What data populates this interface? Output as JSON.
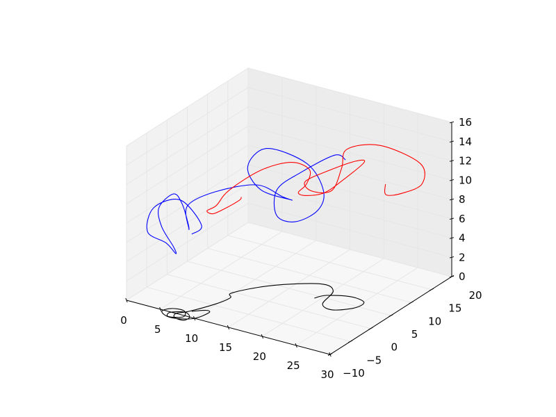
{
  "chart_data": {
    "type": "line",
    "projection": "3d",
    "title": "",
    "xlabel": "",
    "ylabel": "",
    "zlabel": "",
    "grid": true,
    "legend": "none",
    "xlim": [
      0,
      30
    ],
    "ylim": [
      -10,
      20
    ],
    "zlim": [
      0,
      16
    ],
    "x_ticks": [
      {
        "value": 0,
        "label": "0"
      },
      {
        "value": 5,
        "label": "5"
      },
      {
        "value": 10,
        "label": "10"
      },
      {
        "value": 15,
        "label": "15"
      },
      {
        "value": 20,
        "label": "20"
      },
      {
        "value": 25,
        "label": "25"
      },
      {
        "value": 30,
        "label": "30"
      }
    ],
    "y_ticks": [
      {
        "value": -10,
        "label": "−10"
      },
      {
        "value": -5,
        "label": "−5"
      },
      {
        "value": 0,
        "label": "0"
      },
      {
        "value": 5,
        "label": "5"
      },
      {
        "value": 10,
        "label": "10"
      },
      {
        "value": 15,
        "label": "15"
      },
      {
        "value": 20,
        "label": "20"
      }
    ],
    "z_ticks": [
      {
        "value": 0,
        "label": "0"
      },
      {
        "value": 2,
        "label": "2"
      },
      {
        "value": 4,
        "label": "4"
      },
      {
        "value": 6,
        "label": "6"
      },
      {
        "value": 8,
        "label": "8"
      },
      {
        "value": 10,
        "label": "10"
      },
      {
        "value": 12,
        "label": "12"
      },
      {
        "value": 14,
        "label": "14"
      },
      {
        "value": 16,
        "label": "16"
      }
    ],
    "series": [
      {
        "color": "#000000",
        "points": [
          [
            8.6,
            -8.3,
            0
          ],
          [
            9.9,
            -7.0,
            0
          ],
          [
            10.6,
            -7.4,
            0
          ],
          [
            9.9,
            -10.2,
            0
          ],
          [
            7.4,
            -11.5,
            0
          ],
          [
            5.5,
            -10.5,
            0
          ],
          [
            6.0,
            -9.0,
            0
          ],
          [
            7.7,
            -8.7,
            0
          ],
          [
            8.6,
            -10.4,
            0
          ],
          [
            7.0,
            -11.4,
            0
          ],
          [
            6.5,
            -10.2,
            0
          ],
          [
            8.0,
            -9.0,
            0
          ],
          [
            9.3,
            -10.0,
            0
          ],
          [
            9.2,
            -11.3,
            0
          ],
          [
            7.8,
            -11.2,
            0
          ],
          [
            7.3,
            -10.0,
            0
          ],
          [
            8.3,
            -8.5,
            0
          ],
          [
            9.9,
            -4.5,
            0
          ],
          [
            10.4,
            -1.8,
            0
          ],
          [
            9.8,
            -0.3,
            0
          ],
          [
            12.7,
            4.5,
            0
          ],
          [
            17.5,
            8.5,
            0
          ],
          [
            20.0,
            7.5,
            0
          ],
          [
            21.0,
            3.2,
            0
          ],
          [
            23.0,
            2.3,
            0
          ],
          [
            25.0,
            4.5,
            0
          ],
          [
            25.0,
            6.7,
            0
          ],
          [
            22.7,
            7.2,
            0
          ],
          [
            20.0,
            5.8,
            0
          ],
          [
            19.2,
            4.2,
            0
          ]
        ]
      },
      {
        "color": "#0000ff",
        "points": [
          [
            8.6,
            -8.3,
            8
          ],
          [
            8.3,
            -5.4,
            8.1
          ],
          [
            5.3,
            -5.6,
            10.2
          ],
          [
            3.0,
            -8.3,
            9.7
          ],
          [
            2.8,
            -9.5,
            7.5
          ],
          [
            5.0,
            -8.6,
            6.5
          ],
          [
            6.0,
            -7.9,
            5.4
          ],
          [
            6.1,
            -8.6,
            6.3
          ],
          [
            4.7,
            -9.2,
            8.3
          ],
          [
            4.3,
            -9.2,
            10.2
          ],
          [
            5.8,
            -8.1,
            11.6
          ],
          [
            6.5,
            -7.2,
            10.5
          ],
          [
            6.3,
            -5.3,
            7.8
          ],
          [
            5.3,
            -3.5,
            6.7
          ],
          [
            4.8,
            -3.0,
            8.8
          ],
          [
            7.6,
            -0.8,
            10.2
          ],
          [
            11.4,
            3.0,
            10.6
          ],
          [
            13.9,
            5.1,
            9.3
          ],
          [
            14.0,
            7.2,
            8.4
          ],
          [
            10.1,
            6.2,
            9.0
          ],
          [
            8.0,
            6.5,
            10.9
          ],
          [
            9.2,
            9.2,
            12.3
          ],
          [
            13.3,
            12.2,
            10.7
          ],
          [
            15.7,
            12.3,
            8.3
          ],
          [
            15.8,
            10.7,
            6.7
          ],
          [
            14.5,
            7.3,
            6.2
          ],
          [
            12.8,
            5.6,
            7.0
          ],
          [
            12.6,
            6.0,
            9.5
          ],
          [
            14.6,
            8.5,
            11.0
          ],
          [
            17.5,
            12.0,
            12.4
          ],
          [
            18.0,
            13.9,
            11.5
          ]
        ]
      },
      {
        "color": "#ff0000",
        "points": [
          [
            16.8,
            -9.8,
            13.8
          ],
          [
            16.5,
            -9.8,
            13.4
          ],
          [
            13.2,
            -7.9,
            11.4
          ],
          [
            10.0,
            -5.4,
            9.6
          ],
          [
            8.1,
            -3.7,
            9.1
          ],
          [
            9.0,
            -2.9,
            9.6
          ],
          [
            10.2,
            -1.8,
            11.1
          ],
          [
            13.4,
            0.9,
            13.1
          ],
          [
            16.1,
            3.8,
            13.6
          ],
          [
            17.3,
            6.2,
            12.4
          ],
          [
            16.3,
            7.1,
            10.5
          ],
          [
            14.8,
            7.6,
            9.2
          ],
          [
            15.0,
            9.2,
            8.5
          ],
          [
            16.6,
            11.0,
            8.6
          ],
          [
            18.5,
            12.5,
            9.9
          ],
          [
            20.8,
            13.8,
            11.8
          ],
          [
            20.8,
            11.6,
            12.5
          ],
          [
            18.4,
            8.7,
            11.8
          ],
          [
            16.4,
            6.6,
            10.9
          ],
          [
            17.2,
            6.9,
            10.0
          ],
          [
            18.9,
            9.0,
            9.8
          ],
          [
            19.4,
            10.6,
            11.8
          ],
          [
            19.4,
            11.9,
            13.4
          ],
          [
            22.1,
            15.6,
            13.3
          ],
          [
            25.9,
            19.1,
            11.2
          ],
          [
            26.4,
            18.7,
            9.3
          ],
          [
            24.8,
            16.6,
            8.6
          ],
          [
            23.2,
            15.2,
            8.5
          ],
          [
            22.8,
            15.7,
            9.4
          ]
        ]
      }
    ]
  }
}
